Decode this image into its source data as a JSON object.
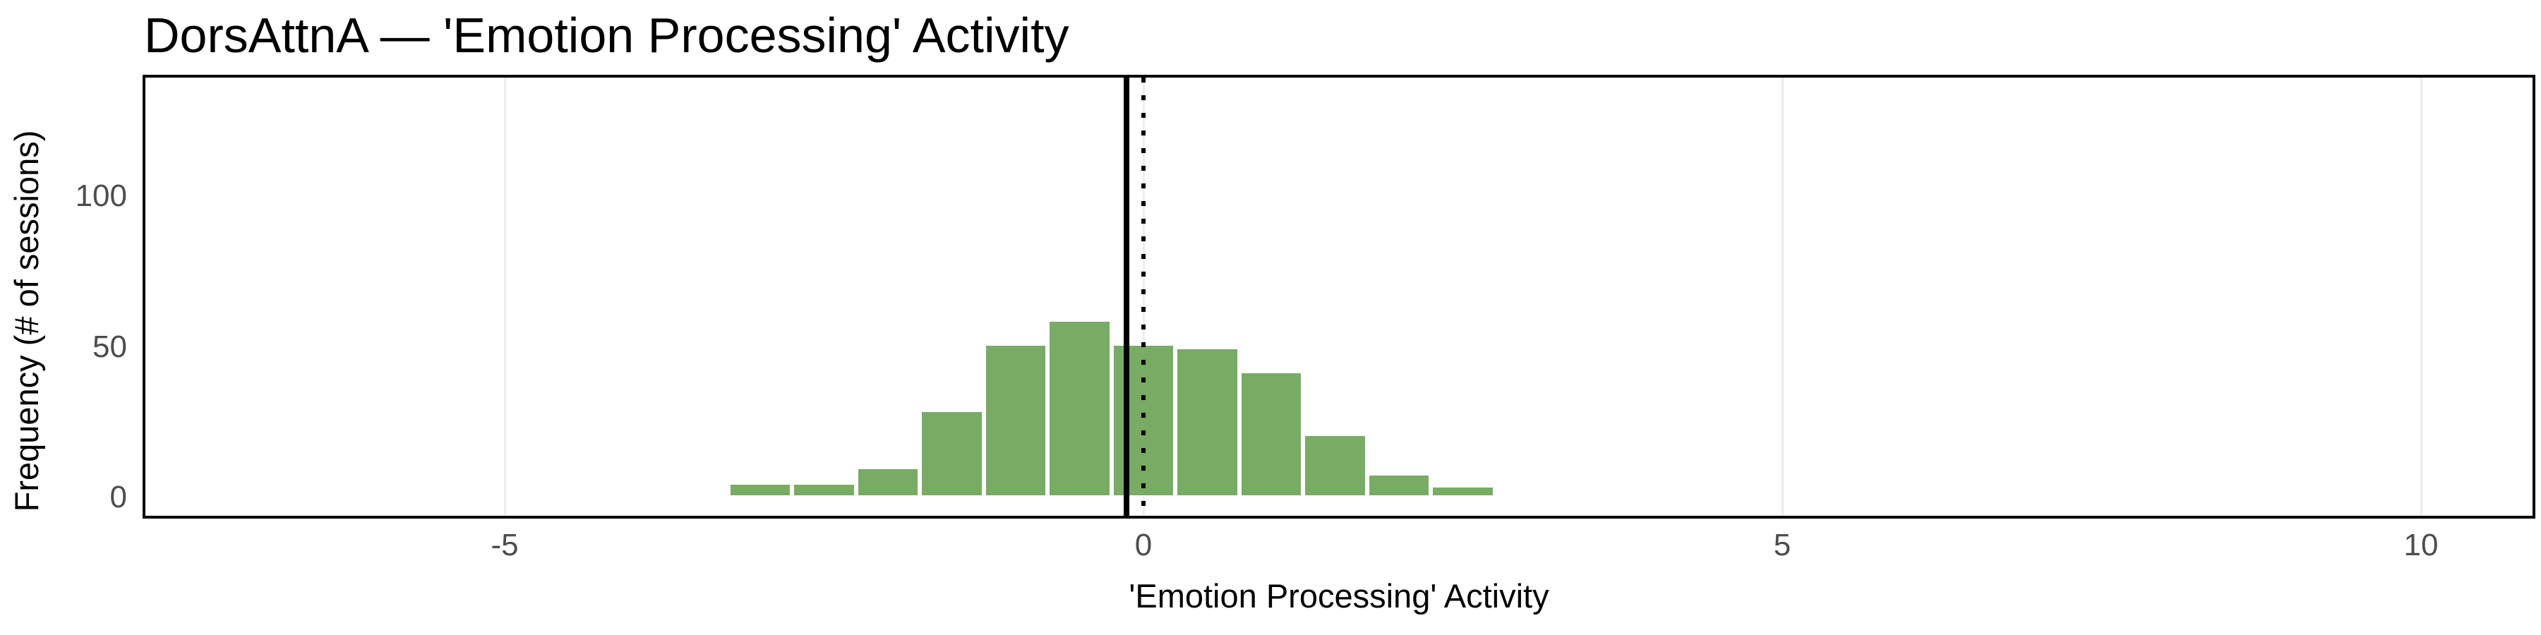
{
  "title": "DorsAttnA — 'Emotion Processing' Activity",
  "axes": {
    "x_label": "'Emotion Processing' Activity",
    "y_label": "Frequency (# of sessions)",
    "x_tick_labels": [
      "-5",
      "0",
      "5",
      "10"
    ],
    "y_tick_labels": [
      "0",
      "50",
      "100"
    ]
  },
  "chart_data": {
    "type": "bar",
    "subtype": "histogram",
    "title": "DorsAttnA — 'Emotion Processing' Activity",
    "xlabel": "'Emotion Processing' Activity",
    "ylabel": "Frequency (# of sessions)",
    "bin_centers": [
      -3.0,
      -2.5,
      -2.0,
      -1.5,
      -1.0,
      -0.5,
      0.0,
      0.5,
      1.0,
      1.5,
      2.0,
      2.5
    ],
    "bin_width": 0.5,
    "counts": [
      5,
      5,
      10,
      29,
      51,
      59,
      51,
      50,
      42,
      21,
      8,
      4
    ],
    "x_ticks": [
      -5,
      0,
      5,
      10
    ],
    "y_ticks": [
      0,
      50,
      100
    ],
    "xlim": [
      -7.8,
      10.9
    ],
    "ylim": [
      0,
      140
    ],
    "grid": "vertical-major-only",
    "legend": "none",
    "reference_lines": [
      {
        "name": "mean-line",
        "style": "solid",
        "x": -0.13,
        "color": "#000000"
      },
      {
        "name": "zero-line",
        "style": "dotted",
        "x": 0.0,
        "color": "#000000"
      }
    ]
  },
  "colors": {
    "bar_fill": "#78AB63",
    "bar_edge": "#FFFFFF",
    "gridline": "#ECECEC",
    "tick_text": "#4D4D4D",
    "panel_border": "#000000"
  }
}
